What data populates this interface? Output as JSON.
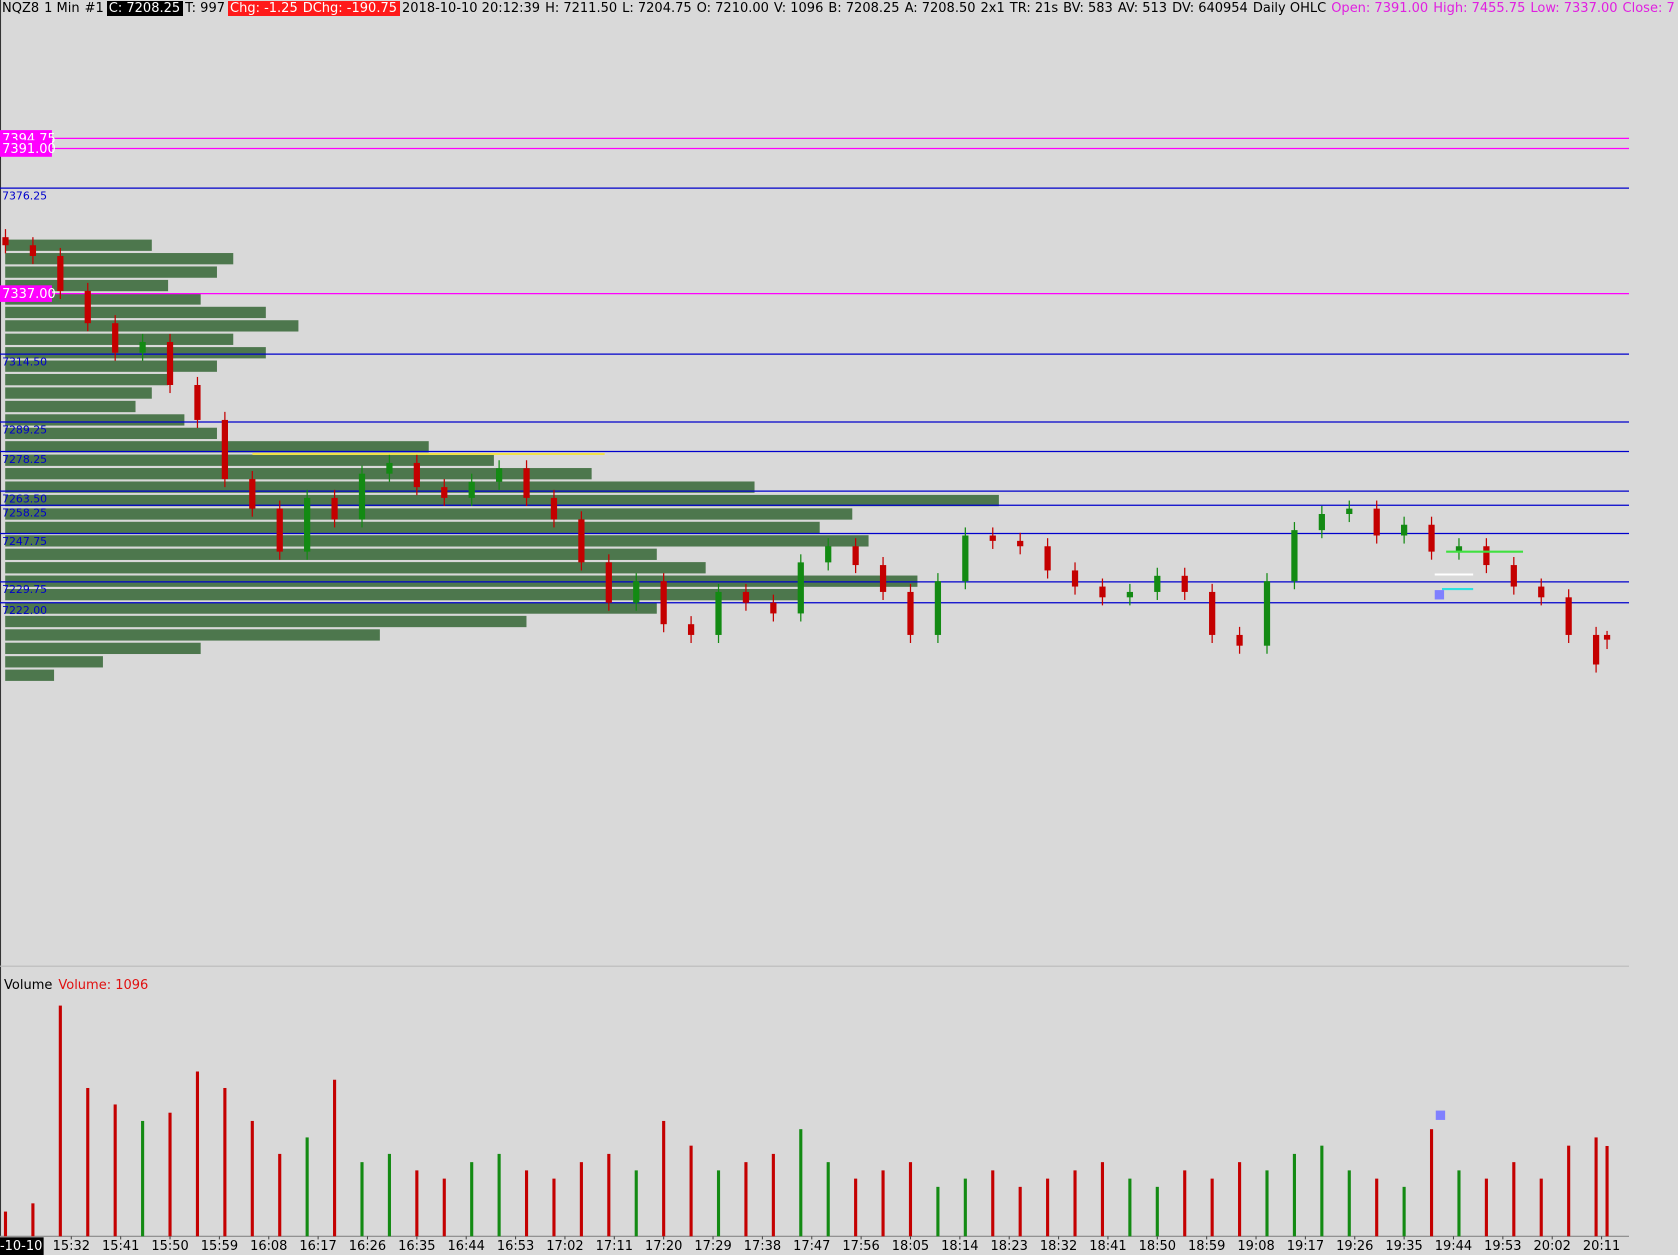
{
  "header": {
    "items": [
      "NQZ8",
      "1 Min",
      "#1",
      "C: 7208.25",
      "T: 997",
      "Chg: -1.25",
      "DChg: -190.75",
      "2018-10-10 20:12:39",
      "H: 7211.50",
      "L: 7204.75",
      "O: 7210.00",
      "V: 1096",
      "B: 7208.25",
      "A: 7208.50",
      "2x1",
      "TR: 21s",
      "BV: 583",
      "AV: 513",
      "DV: 640954",
      "Daily OHLC",
      "Open: 7391.00",
      "High: 7455.75",
      "Low: 7337.00",
      "Close: 7"
    ]
  },
  "volume_header": {
    "title": "Volume",
    "value": "Volume: 1096"
  },
  "date_label": "-10-10",
  "chart_data": {
    "type": "candlestick",
    "xlim": [
      "15:19",
      "20:16"
    ],
    "ylim": [
      7086.75,
      7446.25
    ],
    "xticks": [
      "15:32",
      "15:41",
      "15:50",
      "15:59",
      "16:08",
      "16:17",
      "16:26",
      "16:35",
      "16:44",
      "16:53",
      "17:02",
      "17:11",
      "17:20",
      "17:29",
      "17:38",
      "17:47",
      "17:56",
      "18:05",
      "18:14",
      "18:23",
      "18:32",
      "18:41",
      "18:50",
      "18:59",
      "19:08",
      "19:17",
      "19:26",
      "19:35",
      "19:44",
      "19:53",
      "20:02",
      "20:11"
    ],
    "up_color": "#138a13",
    "down_color": "#c40000",
    "levels": [
      {
        "value": 7394.75,
        "color": "#ff00ff"
      },
      {
        "value": 7391,
        "label": "7391.00",
        "color": "#ff00ff"
      },
      {
        "value": 7376.25,
        "color": "#0000cc"
      },
      {
        "value": 7337,
        "label": "7337.00",
        "color": "#ff00ff"
      },
      {
        "value": 7314.5,
        "label": "7314.50",
        "color": "#0000cc"
      },
      {
        "value": 7289.25,
        "color": "#0000cc"
      },
      {
        "value": 7278.25,
        "color": "#0000cc"
      },
      {
        "value": 7263.5,
        "label": "7263.50",
        "color": "#0000cc"
      },
      {
        "value": 7258.25,
        "color": "#0000cc"
      },
      {
        "value": 7247.75,
        "color": "#0000cc"
      },
      {
        "value": 7229.75,
        "color": "#0000cc"
      },
      {
        "value": 7222,
        "label": "7222.00",
        "color": "#0000cc"
      }
    ],
    "time": [
      "15:20",
      "15:25",
      "15:30",
      "15:35",
      "15:40",
      "15:45",
      "15:50",
      "15:55",
      "16:00",
      "16:05",
      "16:10",
      "16:15",
      "16:20",
      "16:25",
      "16:30",
      "16:35",
      "16:40",
      "16:45",
      "16:50",
      "16:55",
      "17:00",
      "17:05",
      "17:10",
      "17:15",
      "17:20",
      "17:25",
      "17:30",
      "17:35",
      "17:40",
      "17:45",
      "17:50",
      "17:55",
      "18:00",
      "18:05",
      "18:10",
      "18:15",
      "18:20",
      "18:25",
      "18:30",
      "18:35",
      "18:40",
      "18:45",
      "18:50",
      "18:55",
      "19:00",
      "19:05",
      "19:10",
      "19:15",
      "19:20",
      "19:25",
      "19:30",
      "19:35",
      "19:40",
      "19:45",
      "19:50",
      "19:55",
      "20:00",
      "20:05",
      "20:10",
      "20:12"
    ],
    "open": [
      7358,
      7355,
      7351,
      7338,
      7326,
      7315,
      7319,
      7303,
      7290,
      7268,
      7257,
      7241,
      7261,
      7253,
      7270,
      7274,
      7265,
      7261,
      7267,
      7272,
      7261,
      7253,
      7237,
      7222,
      7230,
      7214,
      7210,
      7226,
      7222,
      7218,
      7237,
      7243,
      7236,
      7226,
      7210,
      7230,
      7247,
      7245,
      7243,
      7234,
      7228,
      7224,
      7226,
      7232,
      7226,
      7210,
      7206,
      7230,
      7249,
      7255,
      7257,
      7247,
      7251,
      7241,
      7243,
      7236,
      7228,
      7224,
      7210,
      7210
    ],
    "high": [
      7361,
      7358,
      7354,
      7341,
      7329,
      7322,
      7322,
      7306,
      7293,
      7271,
      7260,
      7264,
      7264,
      7273,
      7277,
      7277,
      7268,
      7270,
      7275,
      7275,
      7264,
      7256,
      7240,
      7233,
      7233,
      7217,
      7229,
      7229,
      7225,
      7240,
      7246,
      7246,
      7239,
      7229,
      7233,
      7250,
      7250,
      7248,
      7246,
      7237,
      7231,
      7229,
      7235,
      7235,
      7229,
      7213,
      7233,
      7252,
      7258,
      7260,
      7260,
      7254,
      7254,
      7246,
      7246,
      7239,
      7231,
      7227,
      7213,
      7211.5
    ],
    "low": [
      7352,
      7348,
      7335,
      7323,
      7312,
      7312,
      7300,
      7287,
      7265,
      7254,
      7238,
      7238,
      7250,
      7250,
      7267,
      7262,
      7258,
      7258,
      7264,
      7258,
      7250,
      7234,
      7219,
      7219,
      7211,
      7207,
      7207,
      7219,
      7215,
      7215,
      7234,
      7233,
      7223,
      7207,
      7207,
      7227,
      7242,
      7240,
      7231,
      7225,
      7221,
      7221,
      7223,
      7223,
      7207,
      7203,
      7203,
      7227,
      7246,
      7252,
      7244,
      7244,
      7238,
      7238,
      7233,
      7225,
      7221,
      7207,
      7196,
      7204.75
    ],
    "close": [
      7355,
      7351,
      7338,
      7326,
      7315,
      7319,
      7303,
      7290,
      7268,
      7257,
      7241,
      7261,
      7253,
      7270,
      7274,
      7265,
      7261,
      7267,
      7272,
      7261,
      7253,
      7237,
      7222,
      7230,
      7214,
      7210,
      7226,
      7222,
      7218,
      7237,
      7243,
      7236,
      7226,
      7210,
      7230,
      7247,
      7245,
      7243,
      7234,
      7228,
      7224,
      7226,
      7232,
      7226,
      7210,
      7206,
      7230,
      7249,
      7255,
      7257,
      7247,
      7251,
      7241,
      7243,
      7236,
      7228,
      7224,
      7210,
      7199,
      7208.25
    ],
    "volume": [
      300,
      400,
      2800,
      1800,
      1600,
      1400,
      1500,
      2000,
      1800,
      1400,
      1000,
      1200,
      1900,
      900,
      1000,
      800,
      700,
      900,
      1000,
      800,
      700,
      900,
      1000,
      800,
      1400,
      1100,
      800,
      900,
      1000,
      1300,
      900,
      700,
      800,
      900,
      600,
      700,
      800,
      600,
      700,
      800,
      900,
      700,
      600,
      800,
      700,
      900,
      800,
      1000,
      1100,
      800,
      700,
      600,
      1300,
      800,
      700,
      900,
      700,
      1100,
      1200,
      1096
    ],
    "volume_ylim": [
      0,
      2900
    ],
    "profile": {
      "color": "#3d6b3d",
      "xlim": [
        0,
        10000
      ],
      "prices": [
        7355,
        7350,
        7345,
        7340,
        7335,
        7330,
        7325,
        7320,
        7315,
        7310,
        7305,
        7300,
        7295,
        7290,
        7285,
        7280,
        7275,
        7270,
        7265,
        7260,
        7255,
        7250,
        7245,
        7240,
        7235,
        7230,
        7225,
        7220,
        7215,
        7210,
        7205,
        7200,
        7195
      ],
      "values": [
        900,
        1400,
        1300,
        1000,
        1200,
        1600,
        1800,
        1400,
        1600,
        1300,
        1000,
        900,
        800,
        1100,
        1300,
        2600,
        3000,
        3600,
        4600,
        6100,
        5200,
        5000,
        5300,
        4000,
        4300,
        5600,
        4900,
        4000,
        3200,
        2300,
        1200,
        600,
        300
      ]
    }
  }
}
